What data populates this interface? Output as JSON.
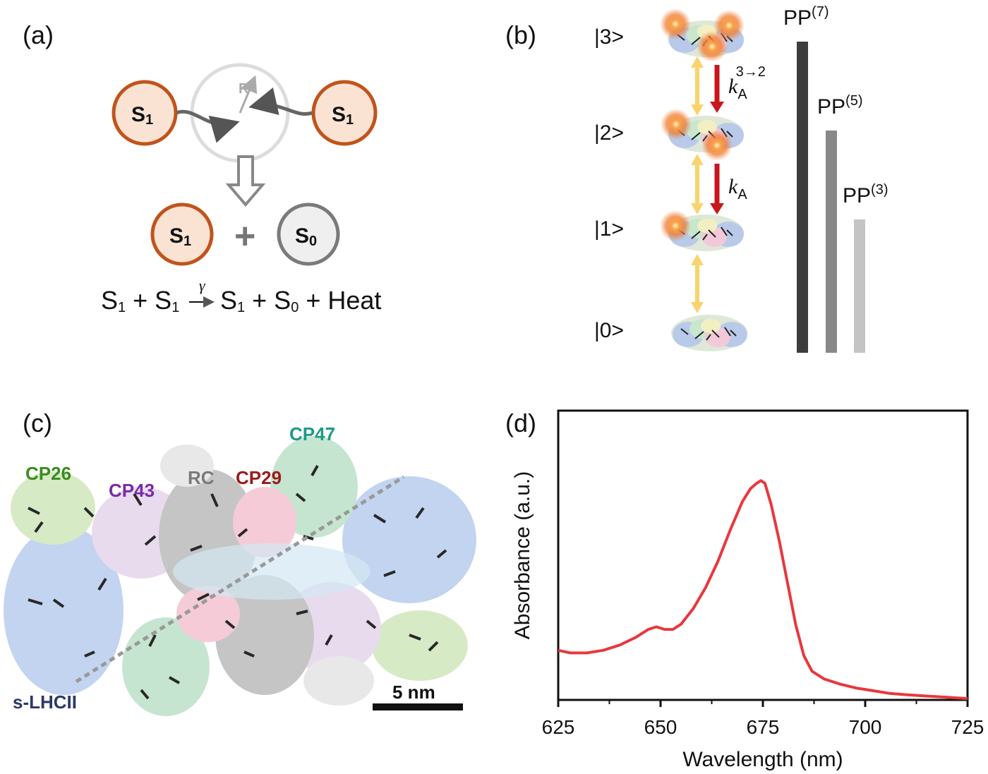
{
  "panel_a": {
    "label": "(a)",
    "s1": "S",
    "s1_sub": "1",
    "s0": "S",
    "s0_sub": "0",
    "r": "R",
    "plus": "+",
    "equation": {
      "p1": "S",
      "p1s": "1",
      "op1": " + ",
      "p2": "S",
      "p2s": "1",
      "rate": "γ",
      "p3": "S",
      "p3s": "1",
      "op2": " + ",
      "p4": "S",
      "p4s": "0",
      "tail": " + Heat"
    },
    "colors": {
      "s1_fill": "#fbe3d4",
      "s1_stroke": "#c0541c",
      "s0_fill": "#efefef",
      "s0_stroke": "#7a7a7a"
    }
  },
  "panel_b": {
    "label": "(b)",
    "states": [
      "|3>",
      "|2>",
      "|1>",
      "|0>"
    ],
    "rate_top": {
      "k": "k",
      "sub": "A",
      "sup": "3→2"
    },
    "rate_mid": {
      "k": "k",
      "sub": "A"
    },
    "pp_bars": [
      {
        "name": "PP",
        "sup": "(7)",
        "value": 7,
        "color": "#3d3d3d"
      },
      {
        "name": "PP",
        "sup": "(5)",
        "value": 5,
        "color": "#888888"
      },
      {
        "name": "PP",
        "sup": "(3)",
        "value": 3,
        "color": "#c4c4c4"
      }
    ],
    "colors": {
      "up_arrow": "#f9d46e",
      "down_arrow": "#c8161d",
      "glow": "#f07a2e"
    }
  },
  "panel_c": {
    "label": "(c)",
    "complexes": [
      {
        "name": "CP47",
        "color": "#1b9b86"
      },
      {
        "name": "CP26",
        "color": "#3a8c1e"
      },
      {
        "name": "CP43",
        "color": "#7a2aa8"
      },
      {
        "name": "RC",
        "color": "#7a7a7a"
      },
      {
        "name": "CP29",
        "color": "#9a1c1c"
      },
      {
        "name": "s-LHCII",
        "color": "#2b3a66"
      }
    ],
    "scale_bar": "5 nm"
  },
  "panel_d": {
    "label": "(d)",
    "chart_data": {
      "type": "line",
      "xlabel": "Wavelength (nm)",
      "ylabel": "Absorbance (a.u.)",
      "xlim": [
        625,
        725
      ],
      "xticks": [
        625,
        650,
        675,
        700,
        725
      ],
      "ylim": [
        0,
        1
      ],
      "series": [
        {
          "color": "#e8383d",
          "x": [
            625,
            628,
            632,
            636,
            640,
            644,
            647,
            649,
            651,
            653,
            655,
            658,
            661,
            664,
            667,
            670,
            672,
            673.5,
            674.5,
            675.5,
            677,
            679,
            681,
            683,
            685,
            687,
            690,
            694,
            698,
            702,
            706,
            710,
            715,
            720,
            725
          ],
          "y": [
            0.19,
            0.18,
            0.18,
            0.19,
            0.21,
            0.24,
            0.27,
            0.28,
            0.27,
            0.27,
            0.29,
            0.35,
            0.43,
            0.53,
            0.65,
            0.76,
            0.81,
            0.83,
            0.84,
            0.83,
            0.75,
            0.61,
            0.45,
            0.29,
            0.17,
            0.11,
            0.08,
            0.06,
            0.045,
            0.035,
            0.025,
            0.02,
            0.015,
            0.01,
            0.005
          ]
        }
      ]
    }
  }
}
